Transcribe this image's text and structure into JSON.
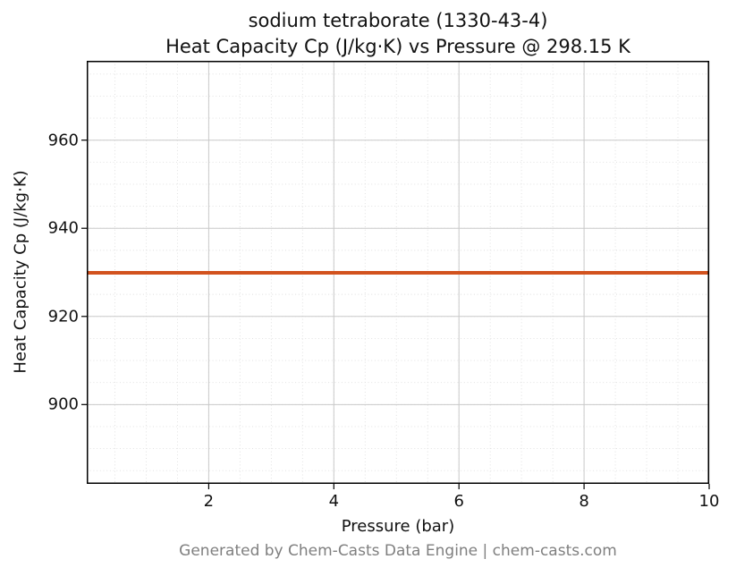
{
  "title": {
    "line1": "sodium tetraborate (1330-43-4)",
    "line2": "Heat Capacity Cp (J/kg·K) vs Pressure @ 298.15 K"
  },
  "footer": {
    "text": "Generated by Chem-Casts Data Engine | chem-casts.com"
  },
  "chart_data": {
    "type": "line",
    "title_lines": [
      "sodium tetraborate (1330-43-4)",
      "Heat Capacity Cp (J/kg·K) vs Pressure @ 298.15 K"
    ],
    "xlabel": "Pressure (bar)",
    "ylabel": "Heat Capacity Cp (J/kg·K)",
    "xlim": [
      0.05,
      10
    ],
    "ylim": [
      882,
      978
    ],
    "xticks": [
      2,
      4,
      6,
      8,
      10
    ],
    "yticks": [
      900,
      920,
      940,
      960
    ],
    "x_minor_step": 0.5,
    "y_minor_step": 5,
    "grid": true,
    "legend": "none",
    "line_color": "#d2521e",
    "line_width": 4,
    "major_grid_color": "#c9c9c9",
    "minor_grid_color": "#dedede",
    "series": [
      {
        "name": "Heat Capacity Cp",
        "x": [
          0.05,
          10
        ],
        "y": [
          929.9,
          929.9
        ]
      }
    ]
  }
}
